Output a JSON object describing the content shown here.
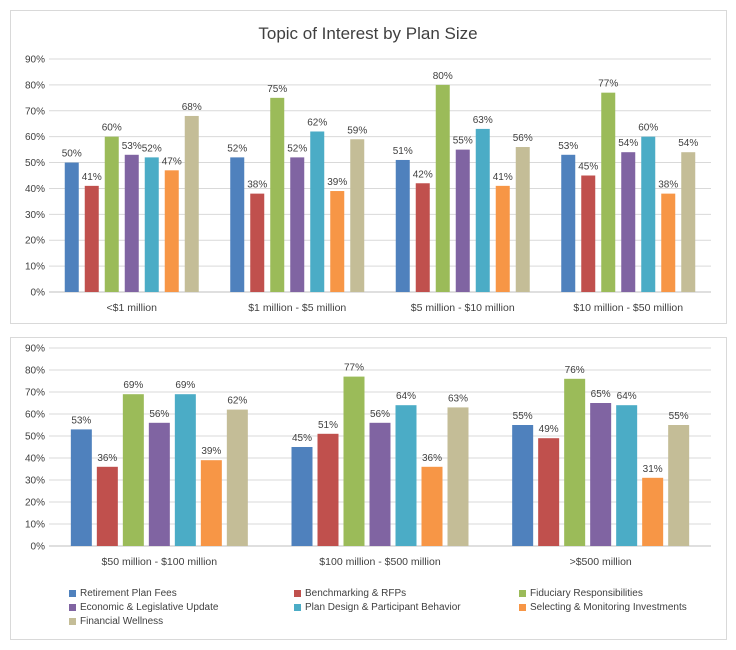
{
  "chart_data": [
    {
      "type": "bar",
      "title": "Topic of Interest by Plan Size",
      "categories": [
        "<$1 million",
        "$1 million - $5 million",
        "$5 million - $10 million",
        "$10 million - $50 million"
      ],
      "yticks": [
        "0%",
        "10%",
        "20%",
        "30%",
        "40%",
        "50%",
        "60%",
        "70%",
        "80%",
        "90%"
      ],
      "ylim": [
        0,
        90
      ],
      "grid": true,
      "series": [
        {
          "name": "Retirement Plan Fees",
          "values": [
            50,
            52,
            51,
            53
          ],
          "labels": [
            "50%",
            "52%",
            "51%",
            "53%"
          ]
        },
        {
          "name": "Benchmarking & RFPs",
          "values": [
            41,
            38,
            42,
            45
          ],
          "labels": [
            "41%",
            "38%",
            "42%",
            "45%"
          ]
        },
        {
          "name": "Fiduciary Responsibilities",
          "values": [
            60,
            75,
            80,
            77
          ],
          "labels": [
            "60%",
            "75%",
            "80%",
            "77%"
          ]
        },
        {
          "name": "Economic & Legislative Update",
          "values": [
            53,
            52,
            55,
            54
          ],
          "labels": [
            "53%",
            "52%",
            "55%",
            "54%"
          ]
        },
        {
          "name": "Plan Design & Participant Behavior",
          "values": [
            52,
            62,
            63,
            60
          ],
          "labels": [
            "52%",
            "62%",
            "63%",
            "60%"
          ]
        },
        {
          "name": "Selecting & Monitoring Investments",
          "values": [
            47,
            39,
            41,
            38
          ],
          "labels": [
            "47%",
            "39%",
            "41%",
            "38%"
          ]
        },
        {
          "name": "Financial Wellness",
          "values": [
            68,
            59,
            56,
            54
          ],
          "labels": [
            "68%",
            "59%",
            "56%",
            "54%"
          ]
        }
      ]
    },
    {
      "type": "bar",
      "title": "",
      "categories": [
        "$50 million - $100 million",
        "$100 million - $500 million",
        ">$500 million"
      ],
      "yticks": [
        "0%",
        "10%",
        "20%",
        "30%",
        "40%",
        "50%",
        "60%",
        "70%",
        "80%",
        "90%"
      ],
      "ylim": [
        0,
        90
      ],
      "grid": true,
      "legend": "bottom",
      "series": [
        {
          "name": "Retirement Plan Fees",
          "values": [
            53,
            45,
            55
          ],
          "labels": [
            "53%",
            "45%",
            "55%"
          ]
        },
        {
          "name": "Benchmarking & RFPs",
          "values": [
            36,
            51,
            49
          ],
          "labels": [
            "36%",
            "51%",
            "49%"
          ]
        },
        {
          "name": "Fiduciary Responsibilities",
          "values": [
            69,
            77,
            76
          ],
          "labels": [
            "69%",
            "77%",
            "76%"
          ]
        },
        {
          "name": "Economic & Legislative Update",
          "values": [
            56,
            56,
            65
          ],
          "labels": [
            "56%",
            "56%",
            "65%"
          ]
        },
        {
          "name": "Plan Design & Participant Behavior",
          "values": [
            69,
            64,
            64
          ],
          "labels": [
            "69%",
            "64%",
            "64%"
          ]
        },
        {
          "name": "Selecting & Monitoring Investments",
          "values": [
            39,
            36,
            31
          ],
          "labels": [
            "39%",
            "36%",
            "31%"
          ]
        },
        {
          "name": "Financial Wellness",
          "values": [
            62,
            63,
            55
          ],
          "labels": [
            "62%",
            "63%",
            "55%"
          ]
        }
      ]
    }
  ],
  "colors": {
    "series": [
      "#4f81bd",
      "#c0504d",
      "#9bbb59",
      "#8064a2",
      "#4bacc6",
      "#f79646",
      "#c4bd97"
    ],
    "gridline": "#d9d9d9",
    "axis": "#bfbfbf",
    "text": "#404040"
  }
}
